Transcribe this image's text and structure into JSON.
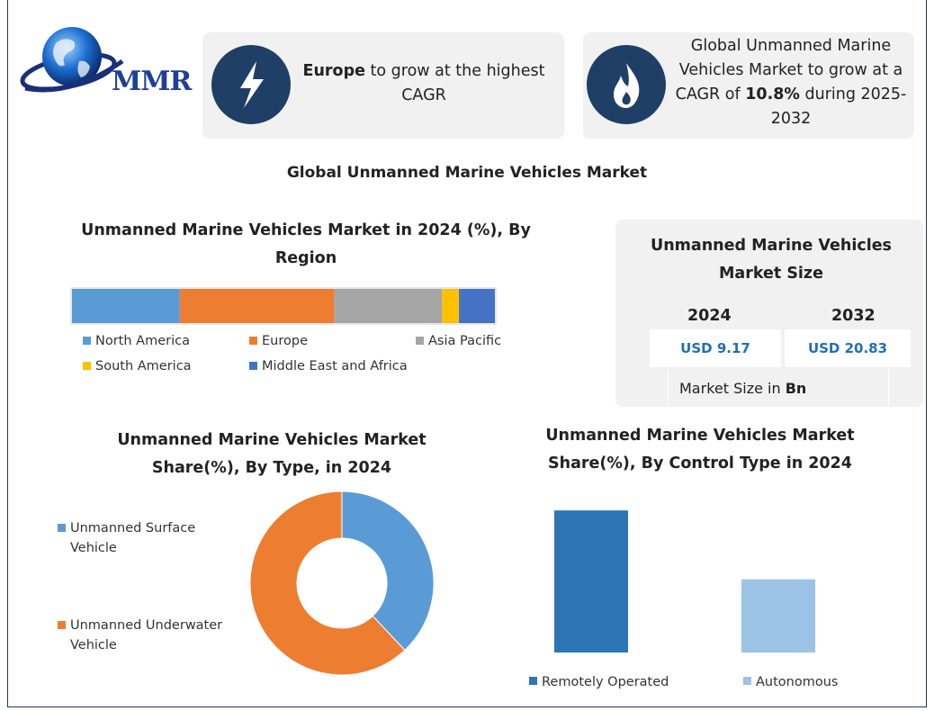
{
  "logo": {
    "text": "MMR"
  },
  "highlights": [
    {
      "icon": "lightning-icon",
      "bold": "Europe",
      "text": " to grow at the highest CAGR"
    },
    {
      "icon": "flame-icon",
      "pre": "Global Unmanned Marine Vehicles Market to grow at a CAGR of ",
      "bold": "10.8%",
      "post": " during 2025-2032"
    }
  ],
  "main_title": "Global Unmanned Marine Vehicles Market",
  "market_size": {
    "title": "Unmanned Marine Vehicles Market Size",
    "years": [
      "2024",
      "2032"
    ],
    "values": [
      "USD 9.17",
      "USD 20.83"
    ],
    "unit_prefix": "Market Size in ",
    "unit_bold": "Bn"
  },
  "chart_data": [
    {
      "type": "bar",
      "orientation": "horizontal-stacked",
      "title": "Unmanned Marine Vehicles Market in 2024 (%), By Region",
      "categories": [
        "North America",
        "Europe",
        "Asia Pacific",
        "South America",
        "Middle East and Africa"
      ],
      "values": [
        25.5,
        36.5,
        25.5,
        4,
        8.5
      ],
      "colors": [
        "#5b9bd5",
        "#ed7d31",
        "#a5a5a5",
        "#ffc000",
        "#4472c4"
      ],
      "legend_placement": "bottom"
    },
    {
      "type": "pie",
      "variant": "donut",
      "title": "Unmanned Marine Vehicles Market Share(%), By Type, in 2024",
      "categories": [
        "Unmanned Surface Vehicle",
        "Unmanned Underwater Vehicle"
      ],
      "values": [
        38,
        62
      ],
      "colors": [
        "#5b9bd5",
        "#ed7d31"
      ],
      "legend_placement": "left"
    },
    {
      "type": "bar",
      "title": "Unmanned Marine Vehicles Market Share(%), By Control Type in 2024",
      "categories": [
        "Remotely Operated",
        "Autonomous"
      ],
      "values": [
        65,
        33.5
      ],
      "ylim": [
        0,
        70
      ],
      "colors": [
        "#2e75b6",
        "#9dc3e6"
      ],
      "legend_placement": "bottom"
    }
  ]
}
